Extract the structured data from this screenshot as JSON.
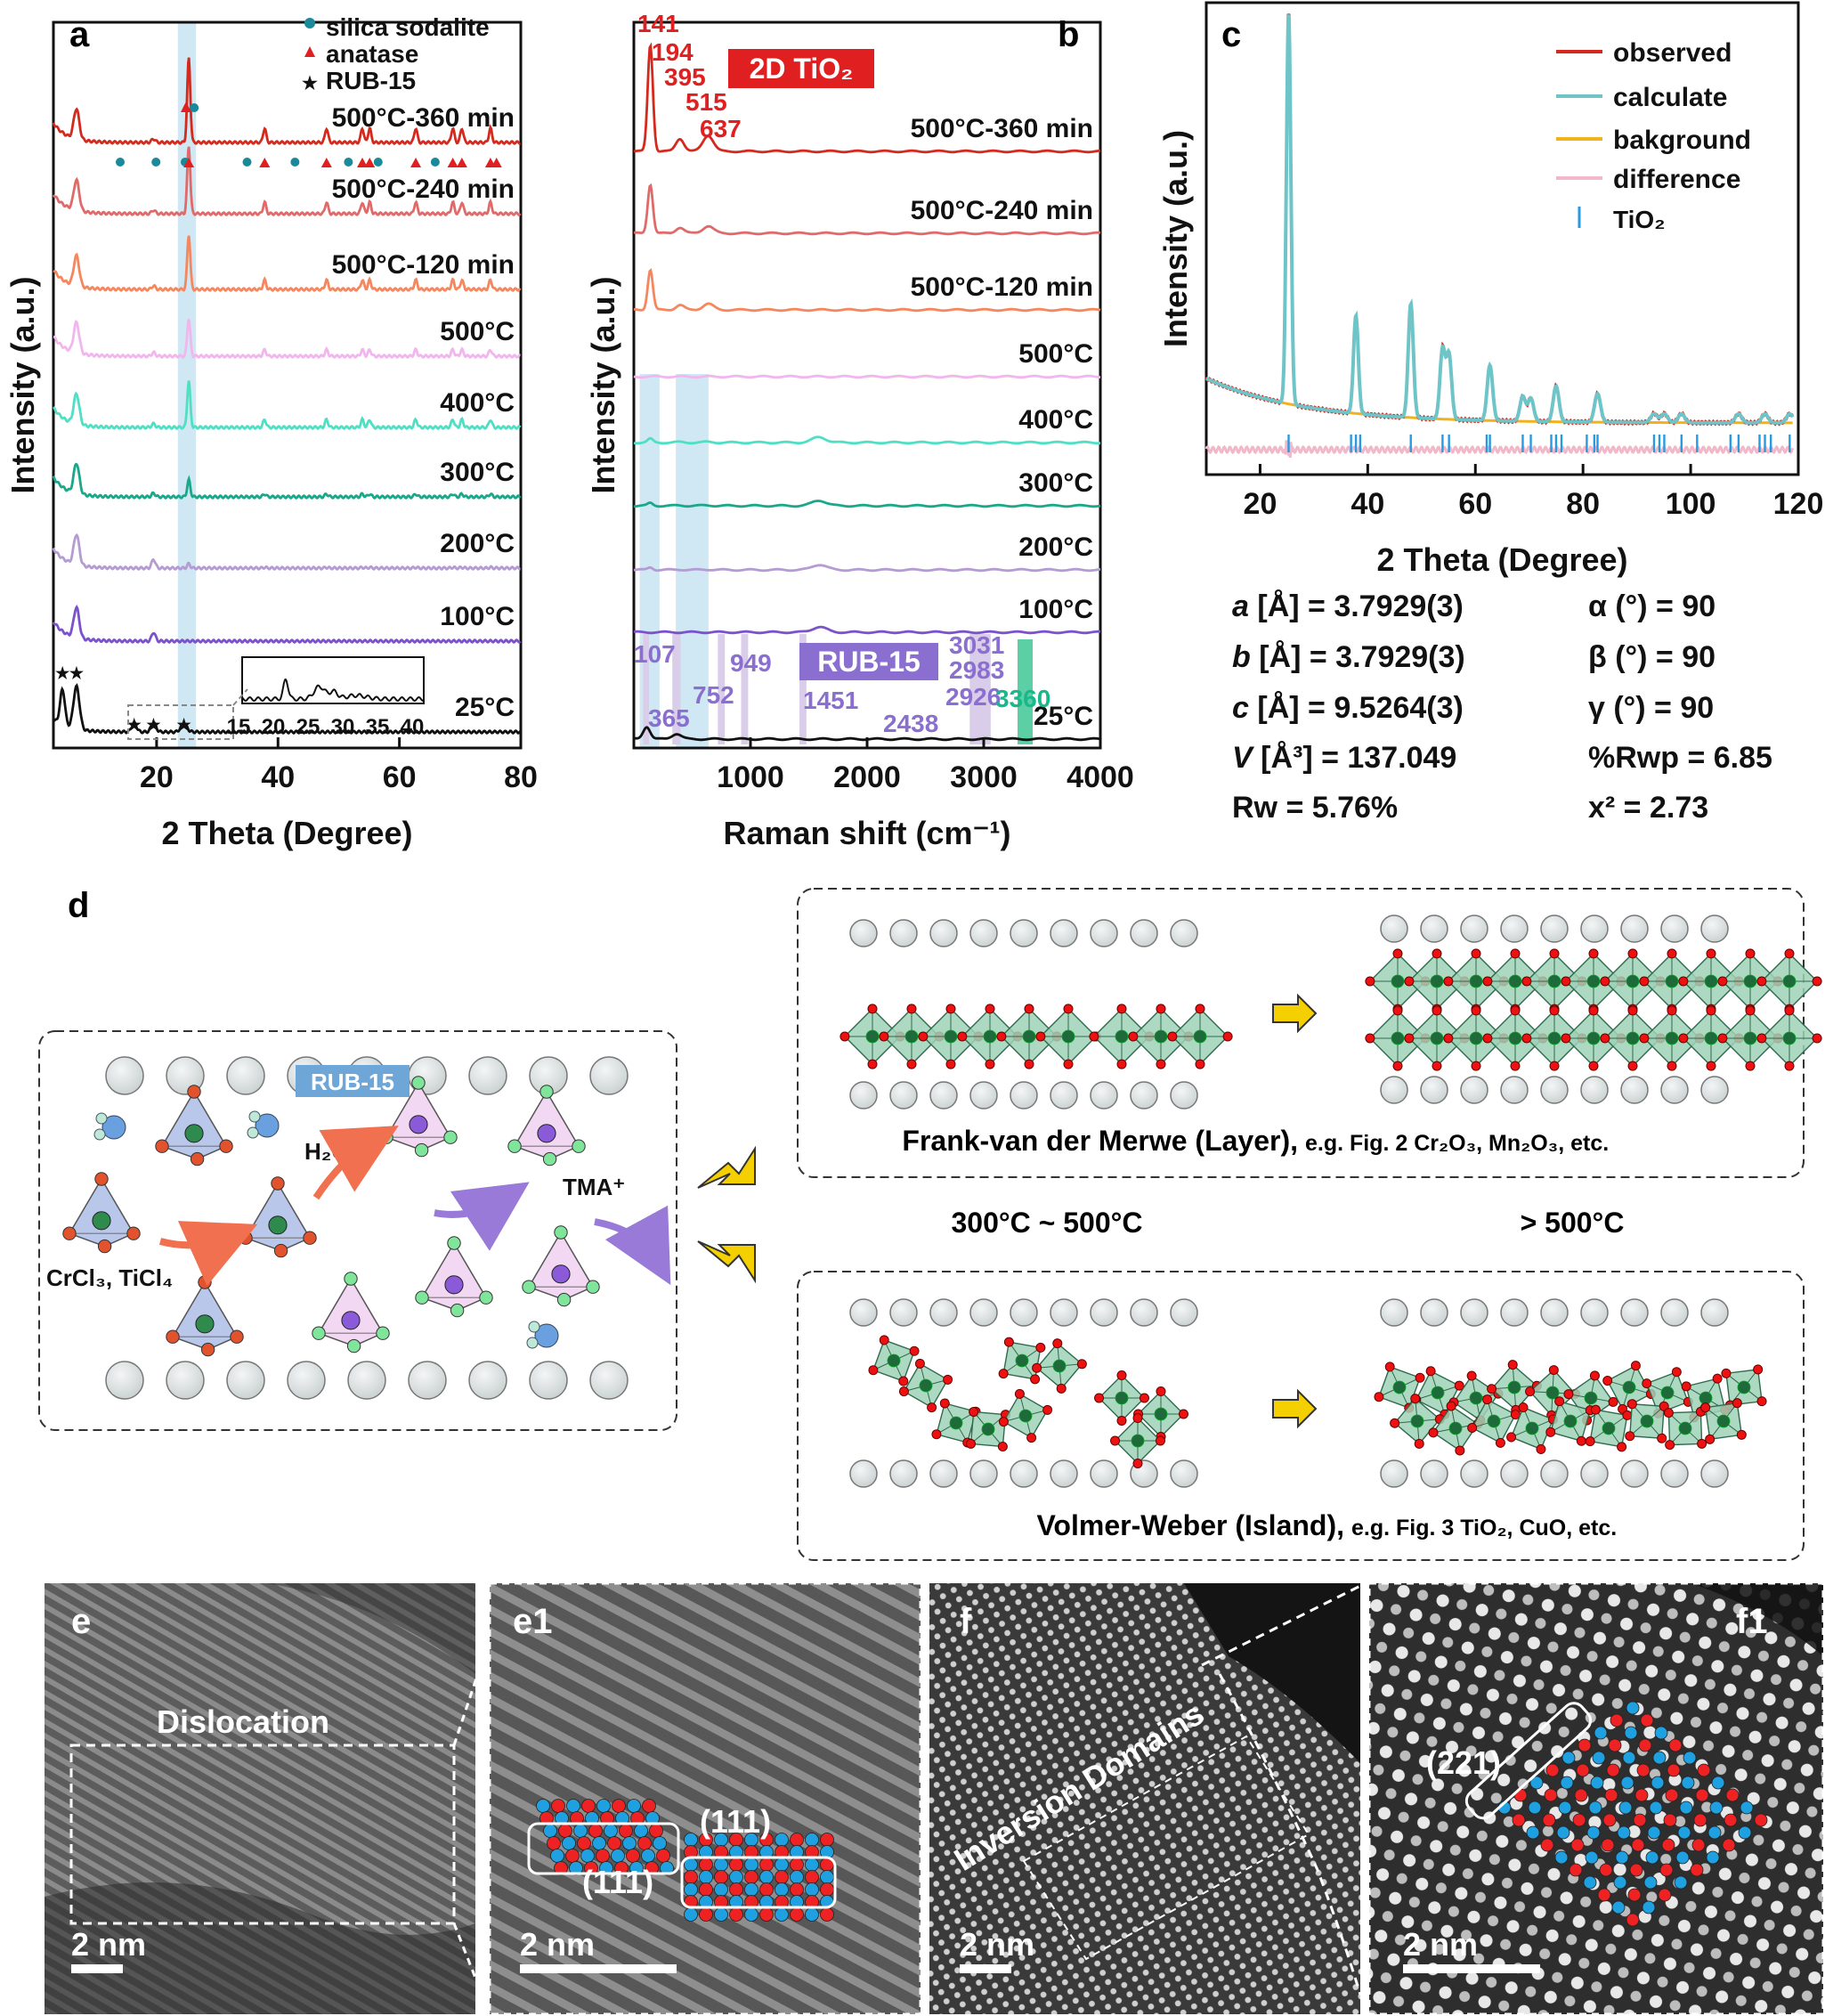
{
  "colors": {
    "curves": [
      "#d42a1e",
      "#e06a6a",
      "#f5875f",
      "#f2b6ee",
      "#4fe0c4",
      "#1aa88a",
      "#b59bd4",
      "#7b52cc",
      "#111111"
    ],
    "highlight": "#cfe8f3",
    "anatase": "#e02020",
    "sodalite": "#1a8a9a",
    "rub_purple": "#8a6fd1",
    "tio2_red": "#e02020",
    "yellow_arrow": "#f5d000"
  },
  "chart_data": [
    {
      "panel": "a",
      "type": "line",
      "xlabel": "2 Theta (Degree)",
      "ylabel": "Intensity (a.u.)",
      "xlim": [
        3,
        80
      ],
      "xticks": [
        20,
        40,
        60,
        80
      ],
      "highlight_range": [
        23.5,
        26.5
      ],
      "legend": [
        {
          "marker": "circle",
          "label": "silica sodalite"
        },
        {
          "marker": "triangle",
          "label": "anatase"
        },
        {
          "marker": "star",
          "label": "RUB-15"
        }
      ],
      "series": [
        {
          "name": "500°C-360 min",
          "anatase_intensity": 1.0,
          "sodalite_peaks": [
            14,
            19.9,
            24.7,
            34.9,
            42.8,
            51.6,
            56.5,
            65.9
          ],
          "anatase_peaks": [
            25.3,
            37.8,
            48.0,
            53.9,
            55.1,
            62.7,
            68.8,
            70.3,
            75.0,
            76.0
          ]
        },
        {
          "name": "500°C-240 min",
          "anatase_intensity": 0.8
        },
        {
          "name": "500°C-120 min",
          "anatase_intensity": 0.65
        },
        {
          "name": "500°C",
          "anatase_intensity": 0.45
        },
        {
          "name": "400°C",
          "anatase_intensity": 0.55
        },
        {
          "name": "300°C",
          "anatase_intensity": 0.2
        },
        {
          "name": "200°C",
          "anatase_intensity": 0.05
        },
        {
          "name": "100°C",
          "anatase_intensity": 0.0
        },
        {
          "name": "25°C",
          "anatase_intensity": 0.0,
          "rub15_peaks": [
            4.5,
            6.8,
            16.3,
            19.5,
            24.5
          ]
        }
      ],
      "inset": {
        "xticks": [
          "15",
          "20",
          "25",
          "30",
          "35",
          "40"
        ]
      }
    },
    {
      "panel": "b",
      "type": "line",
      "xlabel": "Raman shift (cm⁻¹)",
      "ylabel": "Intensity (a.u.)",
      "xlim": [
        0,
        4000
      ],
      "xticks": [
        1000,
        2000,
        3000,
        4000
      ],
      "tio2_label": "2D TiO₂",
      "tio2_peaks": [
        "141",
        "194",
        "395",
        "515",
        "637"
      ],
      "rub_label": "RUB-15",
      "rub_peaks": [
        "107",
        "365",
        "752",
        "949",
        "1451",
        "2438",
        "2926",
        "2983",
        "3031"
      ],
      "water_peak": "3360",
      "series": [
        "500°C-360 min",
        "500°C-240 min",
        "500°C-120 min",
        "500°C",
        "400°C",
        "300°C",
        "200°C",
        "100°C",
        "25°C"
      ]
    },
    {
      "panel": "c",
      "type": "line",
      "xlabel": "2 Theta (Degree)",
      "ylabel": "Intensity (a.u.)",
      "xlim": [
        10,
        120
      ],
      "xticks": [
        20,
        40,
        60,
        80,
        100,
        120
      ],
      "legend": [
        "observed",
        "calculate",
        "bakground",
        "difference",
        "TiO₂"
      ],
      "peaks": [
        25.3,
        37.8,
        48.0,
        53.9,
        55.1,
        62.7,
        68.8,
        70.3,
        75.0,
        82.7
      ],
      "ticks_tio2": [
        25.3,
        36.9,
        37.8,
        38.6,
        48.0,
        53.9,
        55.1,
        62.1,
        62.7,
        68.8,
        70.3,
        74.1,
        75.0,
        76.0,
        80.7,
        82.1,
        82.7,
        93.2,
        94.2,
        95.1,
        98.3,
        101.2,
        107.4,
        108.9,
        112.8,
        113.8,
        114.9,
        118.4
      ]
    }
  ],
  "refinement": [
    {
      "k": "a",
      "v": " [Å] = 3.7929(3)"
    },
    {
      "k": "b",
      "v": " [Å] = 3.7929(3)"
    },
    {
      "k": "c",
      "v": " [Å] = 9.5264(3)"
    },
    {
      "k": "V",
      "v": " [Å³] = 137.049"
    },
    {
      "k": "",
      "v": "Rw = 5.76%"
    }
  ],
  "refinement_right": [
    "α (°) = 90",
    "β (°) = 90",
    "γ (°) = 90",
    "%Rwp = 6.85",
    "x² = 2.73"
  ],
  "panel_labels": {
    "a": "a",
    "b": "b",
    "c": "c",
    "d": "d",
    "e": "e",
    "e1": "e1",
    "f": "f",
    "f1": "f1"
  },
  "schematic": {
    "rub15": "RUB-15",
    "h2o": "H₂O",
    "tma": "TMA⁺",
    "precursor": "CrCl₃, TiCl₄",
    "temp_mid": "300°C ~ 500°C",
    "temp_high": "> 500°C",
    "layer_caption": "Frank-van der Merwe (Layer),",
    "layer_example": "e.g. Fig. 2 Cr₂O₃, Mn₂O₃, etc.",
    "island_caption": "Volmer-Weber (Island),",
    "island_example": "e.g. Fig. 3 TiO₂, CuO, etc."
  },
  "microscopy": {
    "dislocation": "Dislocation",
    "plane_111_a": "(111)",
    "plane_111_b": "(111)",
    "inversion": "Inversion Domains",
    "plane_221": "(221)",
    "scale": "2 nm"
  }
}
